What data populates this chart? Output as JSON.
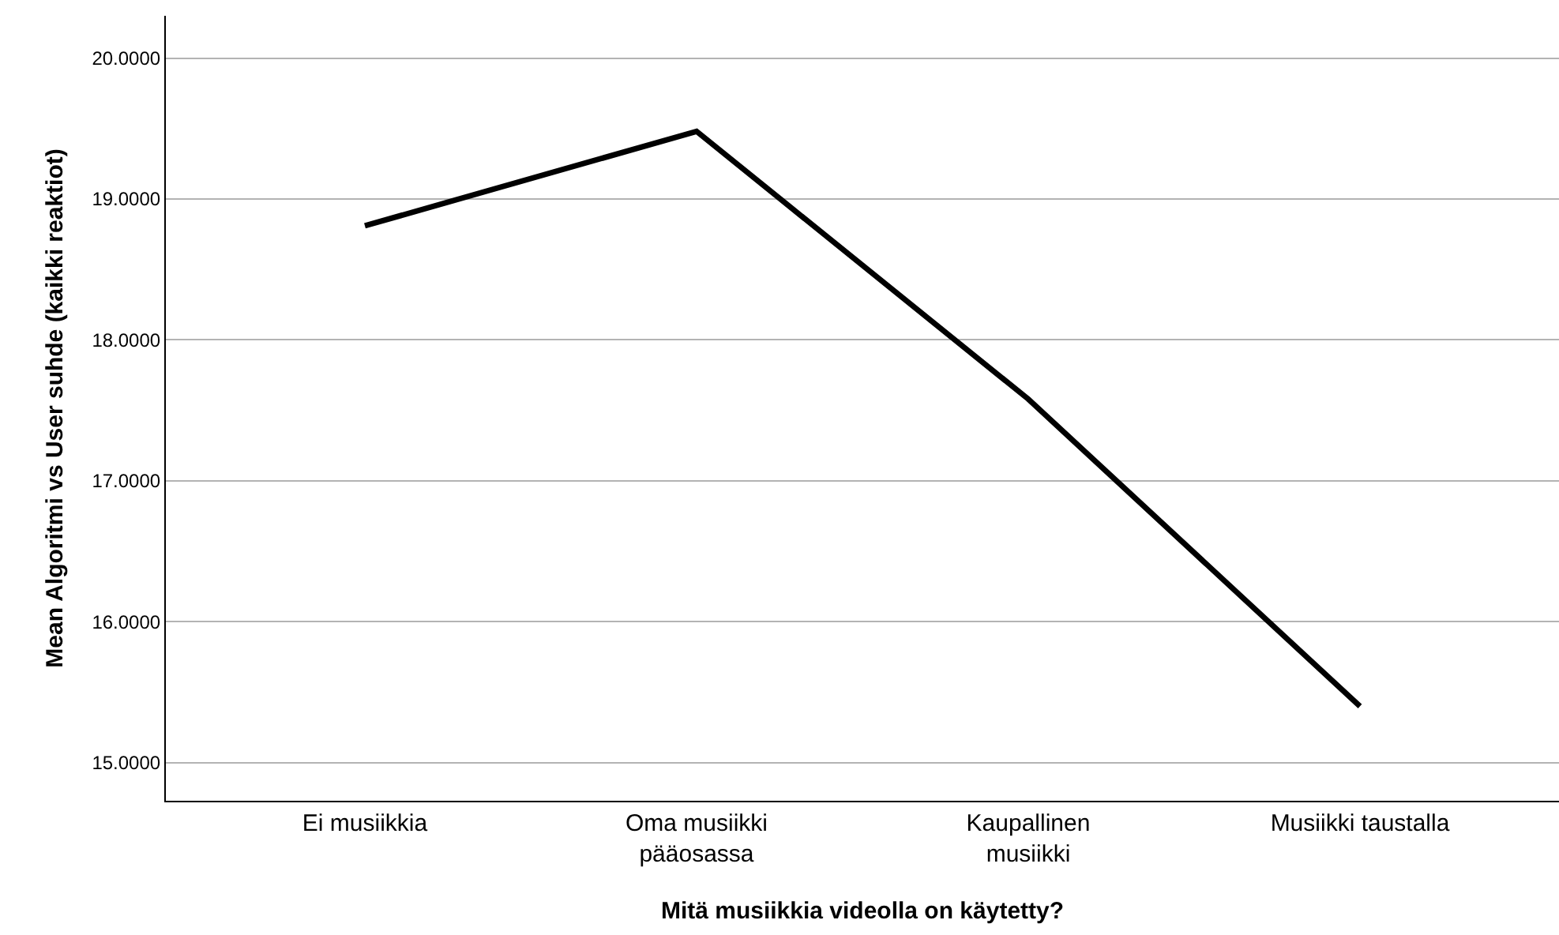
{
  "chart_data": {
    "type": "line",
    "xlabel": "Mitä musiikkia videolla on käytetty?",
    "ylabel": "Mean Algoritmi vs User suhde (kaikki reaktiot)",
    "categories": [
      "Ei musiikkia",
      "Oma musiikki\npääosassa",
      "Kaupallinen\nmusiikki",
      "Musiikki taustalla"
    ],
    "series": [
      {
        "color": "#000000",
        "values": [
          18.81,
          19.48,
          17.58,
          15.4
        ]
      }
    ],
    "ylim": [
      14.73,
      20.3
    ],
    "yticks": [
      {
        "value": 15,
        "label": "15.0000"
      },
      {
        "value": 16,
        "label": "16.0000"
      },
      {
        "value": 17,
        "label": "17.0000"
      },
      {
        "value": 18,
        "label": "18.0000"
      },
      {
        "value": 19,
        "label": "19.0000"
      },
      {
        "value": 20,
        "label": "20.0000"
      }
    ],
    "grid": "y",
    "marker": "none",
    "line_style": "solid"
  }
}
